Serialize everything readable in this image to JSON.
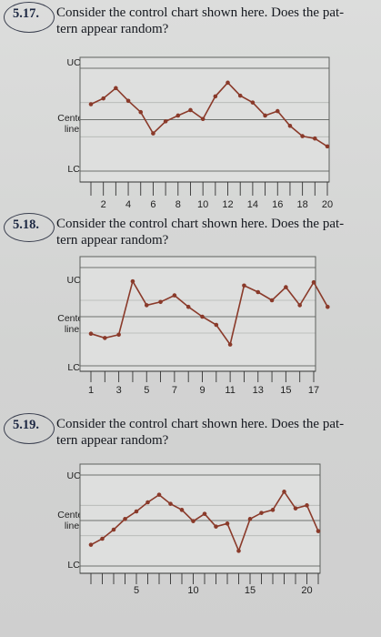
{
  "problems": [
    {
      "number": "5.17.",
      "question": "Consider the control chart shown here. Does the pattern appear random?",
      "question_lines": [
        "Consider the control chart shown here. Does the pat-",
        "tern appear random?"
      ],
      "labels": {
        "ucl": "UCL",
        "center": [
          "Center",
          "line"
        ],
        "lcl": "LCL"
      }
    },
    {
      "number": "5.18.",
      "question": "Consider the control chart shown here. Does the pattern appear random?",
      "question_lines": [
        "Consider the control chart shown here. Does the pat-",
        "tern appear random?"
      ],
      "labels": {
        "ucl": "UCL",
        "center": [
          "Center",
          "line"
        ],
        "lcl": "LCL"
      }
    },
    {
      "number": "5.19.",
      "question": "Consider the control chart shown here. Does the pattern appear random?",
      "question_lines": [
        "Consider the control chart shown here. Does the pat-",
        "tern appear random?"
      ],
      "labels": {
        "ucl": "UCL",
        "center": [
          "Center",
          "line"
        ],
        "lcl": "LCL"
      }
    }
  ],
  "chart_data": [
    {
      "type": "line",
      "title": "",
      "x": [
        1,
        2,
        3,
        4,
        5,
        6,
        7,
        8,
        9,
        10,
        11,
        12,
        13,
        14,
        15,
        16,
        17,
        18,
        19,
        20
      ],
      "y": [
        0.45,
        0.62,
        0.92,
        0.55,
        0.22,
        -0.4,
        -0.05,
        0.12,
        0.28,
        0.02,
        0.68,
        1.08,
        0.7,
        0.5,
        0.12,
        0.25,
        -0.18,
        -0.48,
        -0.55,
        -0.78
      ],
      "xticks": [
        2,
        4,
        6,
        8,
        10,
        12,
        14,
        16,
        18,
        20
      ],
      "xlim": [
        1,
        20
      ],
      "ylim": [
        -1.5,
        1.5
      ],
      "ucl": 1.5,
      "center": 0,
      "lcl": -1.5,
      "color": "#8a3a2a"
    },
    {
      "type": "line",
      "title": "",
      "x": [
        1,
        2,
        3,
        4,
        5,
        6,
        7,
        8,
        9,
        10,
        11,
        12,
        13,
        14,
        15,
        16,
        17,
        18
      ],
      "y": [
        -0.52,
        -0.65,
        -0.55,
        1.08,
        0.35,
        0.45,
        0.65,
        0.3,
        0.0,
        -0.25,
        -0.85,
        0.95,
        0.75,
        0.5,
        0.9,
        0.35,
        1.05,
        0.3
      ],
      "xticks": [
        1,
        3,
        5,
        7,
        9,
        11,
        13,
        15,
        17
      ],
      "xlim": [
        1,
        17
      ],
      "ylim": [
        -1.5,
        1.5
      ],
      "ucl": 1.5,
      "center": 0,
      "lcl": -1.5,
      "color": "#8a3a2a"
    },
    {
      "type": "line",
      "title": "",
      "x": [
        1,
        2,
        3,
        4,
        5,
        6,
        7,
        8,
        9,
        10,
        11,
        12,
        13,
        14,
        15,
        16,
        17,
        18,
        19,
        20,
        21
      ],
      "y": [
        -0.8,
        -0.6,
        -0.3,
        0.05,
        0.3,
        0.6,
        0.85,
        0.55,
        0.35,
        -0.02,
        0.22,
        -0.2,
        -0.1,
        -1.0,
        0.05,
        0.25,
        0.35,
        0.95,
        0.4,
        0.5,
        -0.35
      ],
      "xticks": [
        5,
        10,
        15,
        20
      ],
      "xlim": [
        1,
        21
      ],
      "ylim": [
        -1.5,
        1.5
      ],
      "ucl": 1.5,
      "center": 0,
      "lcl": -1.5,
      "color": "#8a3a2a"
    }
  ]
}
